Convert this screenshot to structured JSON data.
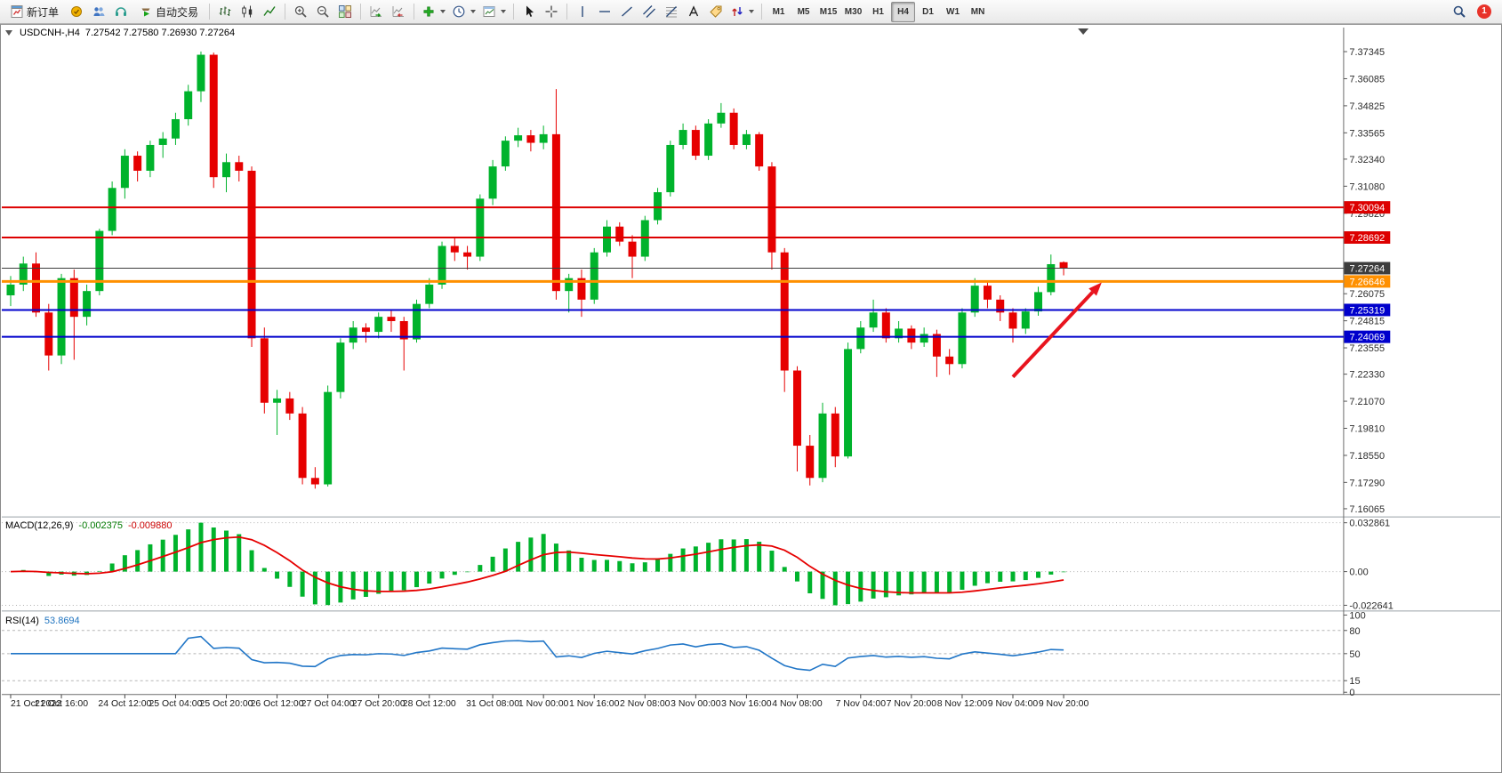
{
  "toolbar": {
    "new_order": "新订单",
    "autotrading": "自动交易",
    "timeframes": [
      "M1",
      "M5",
      "M15",
      "M30",
      "H1",
      "H4",
      "D1",
      "W1",
      "MN"
    ],
    "active_timeframe": "H4",
    "notification_count": "1",
    "icons": [
      "new-order-icon",
      "market-icon",
      "signals-icon",
      "vps-icon",
      "autotrading-icon",
      "bar-chart-icon",
      "candlestick-chart-icon",
      "line-chart-icon",
      "zoom-in-icon",
      "zoom-out-icon",
      "tile-windows-icon",
      "auto-scroll-icon",
      "chart-shift-icon",
      "indicators-icon",
      "periods-icon",
      "templates-icon",
      "cursor-icon",
      "crosshair-icon",
      "vertical-line-icon",
      "horizontal-line-icon",
      "trendline-icon",
      "channel-icon",
      "fibonacci-icon",
      "text-icon",
      "label-icon",
      "arrows-icon",
      "search-icon",
      "notification-badge"
    ]
  },
  "chart_data": [
    {
      "type": "candlestick",
      "title": "USDCNH-,H4",
      "ohlc_display": "7.27542 7.27580 7.26930 7.27264",
      "open": "7.27542",
      "high": "7.27580",
      "low": "7.26930",
      "close": "7.27264",
      "up_color": "#00b32c",
      "down_color": "#e60000",
      "ylim": [
        7.15785,
        7.38465
      ],
      "y_ticks": [
        "7.37345",
        "7.36085",
        "7.34825",
        "7.33565",
        "7.32340",
        "7.31080",
        "7.29820",
        "7.26075",
        "7.24815",
        "7.23555",
        "7.22330",
        "7.21070",
        "7.19810",
        "7.18550",
        "7.17290",
        "7.16065"
      ],
      "x_tick_labels": [
        "21 Oct 2022",
        "21 Oct 16:00",
        "24 Oct 12:00",
        "25 Oct 04:00",
        "25 Oct 20:00",
        "26 Oct 12:00",
        "27 Oct 04:00",
        "27 Oct 20:00",
        "28 Oct 12:00",
        "31 Oct 08:00",
        "1 Nov 00:00",
        "1 Nov 16:00",
        "2 Nov 08:00",
        "3 Nov 00:00",
        "3 Nov 16:00",
        "4 Nov 08:00",
        "7 Nov 04:00",
        "7 Nov 20:00",
        "8 Nov 12:00",
        "9 Nov 04:00",
        "9 Nov 20:00"
      ],
      "x_tick_bar_index": [
        0,
        4,
        9,
        13,
        17,
        21,
        25,
        29,
        33,
        38,
        42,
        46,
        50,
        54,
        58,
        62,
        67,
        71,
        75,
        79,
        83
      ],
      "candles": [
        [
          7.26,
          7.269,
          7.255,
          7.265
        ],
        [
          7.265,
          7.278,
          7.262,
          7.2748
        ],
        [
          7.2748,
          7.28,
          7.25,
          7.252
        ],
        [
          7.252,
          7.256,
          7.225,
          7.232
        ],
        [
          7.232,
          7.27,
          7.228,
          7.268
        ],
        [
          7.268,
          7.272,
          7.23,
          7.25
        ],
        [
          7.25,
          7.265,
          7.246,
          7.262
        ],
        [
          7.262,
          7.291,
          7.26,
          7.29
        ],
        [
          7.29,
          7.313,
          7.288,
          7.31
        ],
        [
          7.31,
          7.328,
          7.305,
          7.325
        ],
        [
          7.325,
          7.327,
          7.313,
          7.318
        ],
        [
          7.318,
          7.332,
          7.315,
          7.33
        ],
        [
          7.33,
          7.336,
          7.324,
          7.333
        ],
        [
          7.333,
          7.345,
          7.33,
          7.342
        ],
        [
          7.342,
          7.358,
          7.339,
          7.355
        ],
        [
          7.355,
          7.3735,
          7.35,
          7.372
        ],
        [
          7.372,
          7.373,
          7.31,
          7.315
        ],
        [
          7.315,
          7.326,
          7.308,
          7.322
        ],
        [
          7.322,
          7.325,
          7.313,
          7.318
        ],
        [
          7.318,
          7.32,
          7.236,
          7.24
        ],
        [
          7.24,
          7.245,
          7.205,
          7.21
        ],
        [
          7.21,
          7.216,
          7.195,
          7.212
        ],
        [
          7.212,
          7.215,
          7.202,
          7.205
        ],
        [
          7.205,
          7.208,
          7.172,
          7.175
        ],
        [
          7.175,
          7.18,
          7.17,
          7.172
        ],
        [
          7.172,
          7.218,
          7.171,
          7.215
        ],
        [
          7.215,
          7.24,
          7.212,
          7.238
        ],
        [
          7.238,
          7.248,
          7.235,
          7.245
        ],
        [
          7.245,
          7.247,
          7.238,
          7.243
        ],
        [
          7.243,
          7.252,
          7.24,
          7.25
        ],
        [
          7.25,
          7.253,
          7.243,
          7.248
        ],
        [
          7.248,
          7.25,
          7.225,
          7.2395
        ],
        [
          7.2395,
          7.258,
          7.238,
          7.256
        ],
        [
          7.256,
          7.268,
          7.254,
          7.265
        ],
        [
          7.265,
          7.285,
          7.263,
          7.283
        ],
        [
          7.283,
          7.287,
          7.276,
          7.28
        ],
        [
          7.28,
          7.283,
          7.272,
          7.278
        ],
        [
          7.278,
          7.307,
          7.276,
          7.305
        ],
        [
          7.305,
          7.323,
          7.302,
          7.32
        ],
        [
          7.32,
          7.334,
          7.318,
          7.332
        ],
        [
          7.332,
          7.338,
          7.329,
          7.3345
        ],
        [
          7.3345,
          7.337,
          7.327,
          7.331
        ],
        [
          7.331,
          7.339,
          7.328,
          7.335
        ],
        [
          7.335,
          7.356,
          7.258,
          7.262
        ],
        [
          7.262,
          7.27,
          7.252,
          7.268
        ],
        [
          7.268,
          7.272,
          7.25,
          7.258
        ],
        [
          7.258,
          7.282,
          7.256,
          7.28
        ],
        [
          7.28,
          7.295,
          7.278,
          7.292
        ],
        [
          7.292,
          7.294,
          7.283,
          7.285
        ],
        [
          7.285,
          7.288,
          7.268,
          7.278
        ],
        [
          7.278,
          7.297,
          7.276,
          7.295
        ],
        [
          7.295,
          7.31,
          7.293,
          7.308
        ],
        [
          7.308,
          7.332,
          7.306,
          7.33
        ],
        [
          7.33,
          7.34,
          7.328,
          7.337
        ],
        [
          7.337,
          7.339,
          7.323,
          7.325
        ],
        [
          7.325,
          7.342,
          7.323,
          7.34
        ],
        [
          7.34,
          7.3495,
          7.338,
          7.345
        ],
        [
          7.345,
          7.347,
          7.328,
          7.33
        ],
        [
          7.33,
          7.337,
          7.328,
          7.335
        ],
        [
          7.335,
          7.336,
          7.318,
          7.32
        ],
        [
          7.32,
          7.322,
          7.272,
          7.28
        ],
        [
          7.28,
          7.282,
          7.215,
          7.225
        ],
        [
          7.225,
          7.227,
          7.178,
          7.19
        ],
        [
          7.19,
          7.195,
          7.1715,
          7.175
        ],
        [
          7.175,
          7.21,
          7.173,
          7.205
        ],
        [
          7.205,
          7.208,
          7.18,
          7.185
        ],
        [
          7.185,
          7.238,
          7.184,
          7.235
        ],
        [
          7.235,
          7.248,
          7.233,
          7.245
        ],
        [
          7.245,
          7.258,
          7.243,
          7.252
        ],
        [
          7.252,
          7.254,
          7.238,
          7.24
        ],
        [
          7.24,
          7.248,
          7.238,
          7.2445
        ],
        [
          7.2445,
          7.246,
          7.235,
          7.238
        ],
        [
          7.238,
          7.245,
          7.236,
          7.242
        ],
        [
          7.242,
          7.244,
          7.222,
          7.2315
        ],
        [
          7.2315,
          7.235,
          7.223,
          7.228
        ],
        [
          7.228,
          7.254,
          7.226,
          7.252
        ],
        [
          7.252,
          7.268,
          7.25,
          7.2645
        ],
        [
          7.2645,
          7.266,
          7.254,
          7.258
        ],
        [
          7.258,
          7.26,
          7.248,
          7.252
        ],
        [
          7.252,
          7.254,
          7.238,
          7.2445
        ],
        [
          7.2445,
          7.254,
          7.242,
          7.2525
        ],
        [
          7.2525,
          7.264,
          7.2505,
          7.2615
        ],
        [
          7.2615,
          7.279,
          7.26,
          7.2745
        ],
        [
          7.27542,
          7.2758,
          7.2693,
          7.27264
        ]
      ],
      "lines": [
        {
          "label": "7.30094",
          "value": 7.30094,
          "color": "#dd0000",
          "width": 2
        },
        {
          "label": "7.28692",
          "value": 7.28692,
          "color": "#dd0000",
          "width": 2
        },
        {
          "label": "7.26646",
          "value": 7.26646,
          "color": "#ff9000",
          "width": 3
        },
        {
          "label": "7.25319",
          "value": 7.25319,
          "color": "#0000cc",
          "width": 2
        },
        {
          "label": "7.24069",
          "value": 7.24069,
          "color": "#0000cc",
          "width": 2
        },
        {
          "label": "7.27264",
          "value": 7.27264,
          "color": "#3d3d3d",
          "width": 1,
          "role": "current-price"
        }
      ],
      "annotation_arrow": {
        "color": "#e8141e",
        "from_bar": 79,
        "from_price": 7.222,
        "to_bar": 86,
        "to_price": 7.266
      }
    },
    {
      "type": "bar",
      "name": "macd",
      "label": "MACD(12,26,9)",
      "params": [
        12,
        26,
        9
      ],
      "main_value": "-0.002375",
      "signal_value": "-0.009880",
      "histogram_color": "#00b32c",
      "signal_color": "#e60000",
      "y_ticks": [
        "0.032861",
        "0.00",
        "-0.022641"
      ],
      "ylim": [
        -0.022641,
        0.032861
      ]
    },
    {
      "type": "line",
      "name": "rsi",
      "label": "RSI(14)",
      "period": 14,
      "value": "53.8694",
      "line_color": "#2176c7",
      "y_ticks": [
        "100",
        "80",
        "50",
        "15",
        "0"
      ],
      "levels": [
        80,
        50,
        15
      ],
      "ylim": [
        0,
        100
      ]
    }
  ]
}
